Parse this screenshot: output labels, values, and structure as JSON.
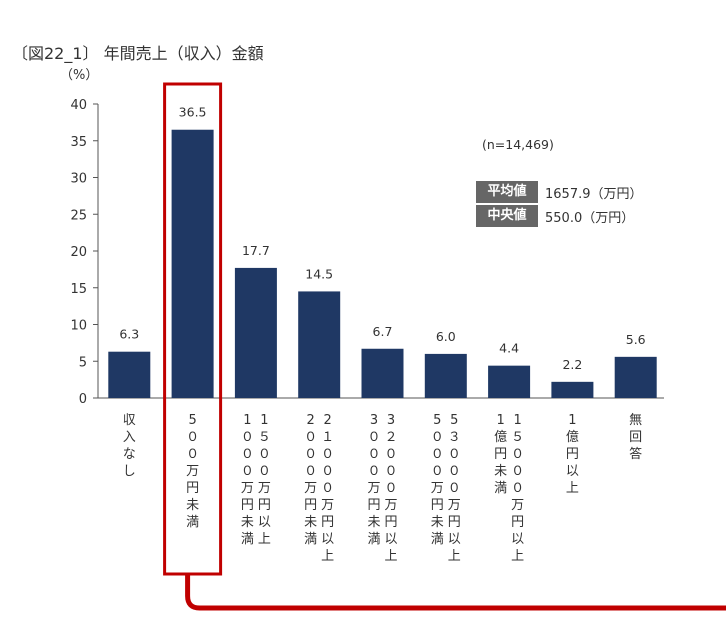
{
  "page": {
    "title": "〔図22_1〕 年間売上（収入）金額",
    "unit": "（%）",
    "n_label": "(n=14,469)",
    "stats": [
      {
        "key": "平均値",
        "value": "1657.9（万円）"
      },
      {
        "key": "中央値",
        "value": "550.0（万円）"
      }
    ]
  },
  "chart_data": {
    "type": "bar",
    "title": "〔図22_1〕 年間売上（収入）金額",
    "ylabel": "（%）",
    "ylim": [
      0,
      40
    ],
    "yticks": [
      "0",
      "5",
      "10",
      "15",
      "20",
      "25",
      "30",
      "35",
      "40"
    ],
    "categories": [
      "収入なし",
      "500万円未満",
      "1000万円未満",
      "2000万円未満",
      "3000万円未満",
      "5000万円未満",
      "1億円未満",
      "1億円以上",
      "無回答"
    ],
    "category_columns": [
      [
        "収入なし"
      ],
      [
        "5００万円未満"
      ],
      [
        "1５００万円以上",
        "1０００万円未満"
      ],
      [
        "2１０００万円以上",
        "2０００万円未満"
      ],
      [
        "3２０００万円以上",
        "3０００万円未満"
      ],
      [
        "5３０００万円以上",
        "5０００万円未満"
      ],
      [
        "1５０００万円以上",
        "1億円未満"
      ],
      [
        "1億円以上"
      ],
      [
        "無回答"
      ]
    ],
    "values": [
      6.3,
      36.5,
      17.7,
      14.5,
      6.7,
      6.0,
      4.4,
      2.2,
      5.6
    ],
    "value_labels": [
      "6.3",
      "36.5",
      "17.7",
      "14.5",
      "6.7",
      "6.0",
      "4.4",
      "2.2",
      "5.6"
    ],
    "bar_color": "#1f3864",
    "highlight_index": 1,
    "highlight_color": "#c00000",
    "grid": false,
    "legend": "none"
  }
}
